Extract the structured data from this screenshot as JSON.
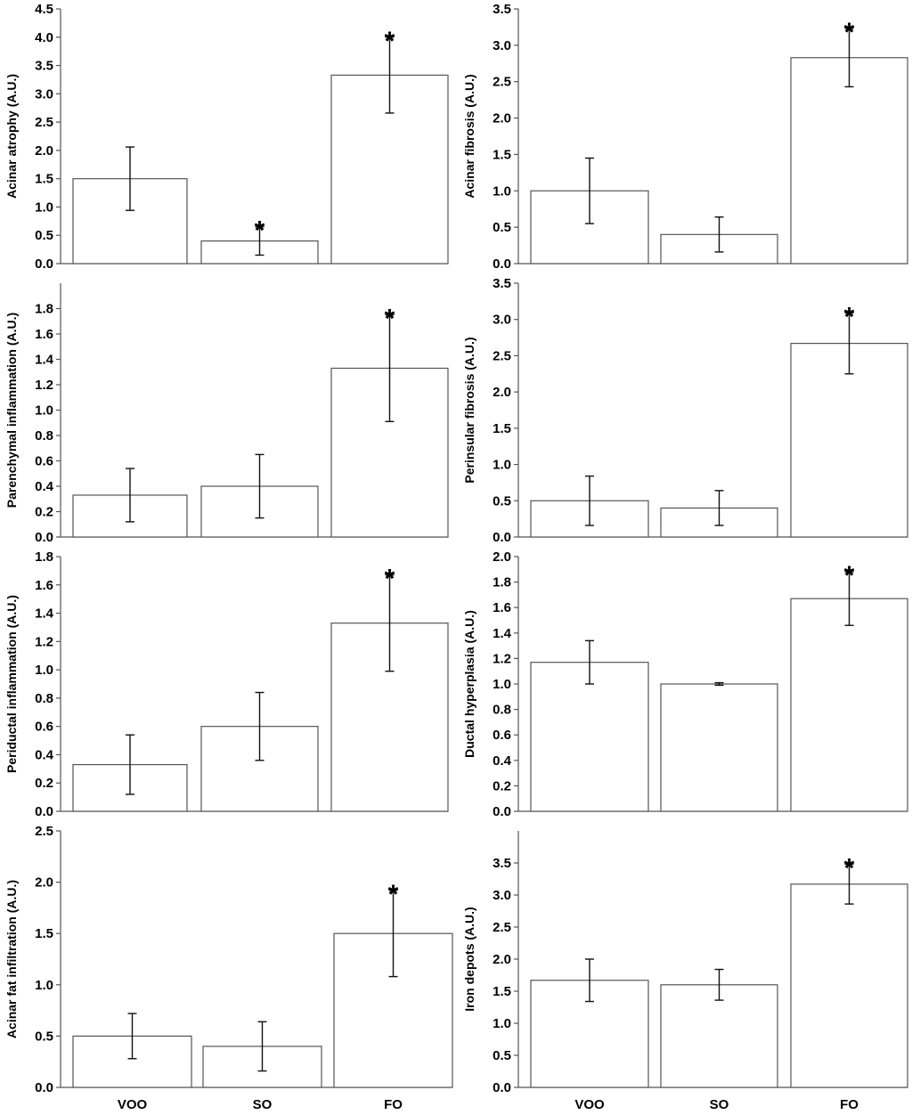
{
  "chart_data": [
    {
      "type": "bar",
      "ylabel": "Acinar atrophy (A.U.)",
      "categories": [
        "VOO",
        "SO",
        "FO"
      ],
      "values": [
        1.5,
        0.4,
        3.33
      ],
      "errors": [
        0.56,
        0.25,
        0.67
      ],
      "significant": [
        false,
        true,
        true
      ],
      "ylim": [
        0,
        4.5
      ],
      "yticks": [
        0.0,
        0.5,
        1.0,
        1.5,
        2.0,
        2.5,
        3.0,
        3.5,
        4.0,
        4.5
      ],
      "show_category_labels": false
    },
    {
      "type": "bar",
      "ylabel": "Acinar fibrosis (A.U.)",
      "categories": [
        "VOO",
        "SO",
        "FO"
      ],
      "values": [
        1.0,
        0.4,
        2.83
      ],
      "errors": [
        0.45,
        0.24,
        0.4
      ],
      "significant": [
        false,
        false,
        true
      ],
      "ylim": [
        0,
        3.5
      ],
      "yticks": [
        0.0,
        0.5,
        1.0,
        1.5,
        2.0,
        2.5,
        3.0,
        3.5
      ],
      "show_category_labels": false
    },
    {
      "type": "bar",
      "ylabel": "Parenchymal inflammation (A.U.)",
      "categories": [
        "VOO",
        "SO",
        "FO"
      ],
      "values": [
        0.33,
        0.4,
        1.33
      ],
      "errors": [
        0.21,
        0.25,
        0.42
      ],
      "significant": [
        false,
        false,
        true
      ],
      "ylim": [
        0,
        2.0
      ],
      "yticks": [
        0.0,
        0.2,
        0.4,
        0.6,
        0.8,
        1.0,
        1.2,
        1.4,
        1.6,
        1.8
      ],
      "show_category_labels": false
    },
    {
      "type": "bar",
      "ylabel": "Perinsular fibrosis (A.U.)",
      "categories": [
        "VOO",
        "SO",
        "FO"
      ],
      "values": [
        0.5,
        0.4,
        2.67
      ],
      "errors": [
        0.34,
        0.24,
        0.42
      ],
      "significant": [
        false,
        false,
        true
      ],
      "ylim": [
        0,
        3.5
      ],
      "yticks": [
        0.0,
        0.5,
        1.0,
        1.5,
        2.0,
        2.5,
        3.0,
        3.5
      ],
      "show_category_labels": false
    },
    {
      "type": "bar",
      "ylabel": "Periductal inflammation (A.U.)",
      "categories": [
        "VOO",
        "SO",
        "FO"
      ],
      "values": [
        0.33,
        0.6,
        1.33
      ],
      "errors": [
        0.21,
        0.24,
        0.34
      ],
      "significant": [
        false,
        false,
        true
      ],
      "ylim": [
        0,
        1.8
      ],
      "yticks": [
        0.0,
        0.2,
        0.4,
        0.6,
        0.8,
        1.0,
        1.2,
        1.4,
        1.6,
        1.8
      ],
      "show_category_labels": false
    },
    {
      "type": "bar",
      "ylabel": "Ductal hyperplasia (A.U.)",
      "categories": [
        "VOO",
        "SO",
        "FO"
      ],
      "values": [
        1.17,
        1.0,
        1.67
      ],
      "errors": [
        0.17,
        0.01,
        0.21
      ],
      "significant": [
        false,
        false,
        true
      ],
      "ylim": [
        0,
        2.0
      ],
      "yticks": [
        0.0,
        0.2,
        0.4,
        0.6,
        0.8,
        1.0,
        1.2,
        1.4,
        1.6,
        1.8,
        2.0
      ],
      "show_category_labels": false
    },
    {
      "type": "bar",
      "ylabel": "Acinar fat infiltration (A.U.)",
      "categories": [
        "VOO",
        "SO",
        "FO"
      ],
      "values": [
        0.5,
        0.4,
        1.5
      ],
      "errors": [
        0.22,
        0.24,
        0.42
      ],
      "significant": [
        false,
        false,
        true
      ],
      "ylim": [
        0,
        2.5
      ],
      "yticks": [
        0.0,
        0.5,
        1.0,
        1.5,
        2.0,
        2.5
      ],
      "show_category_labels": true
    },
    {
      "type": "bar",
      "ylabel": "Iron depots (A.U.)",
      "categories": [
        "VOO",
        "SO",
        "FO"
      ],
      "values": [
        1.67,
        1.6,
        3.17
      ],
      "errors": [
        0.33,
        0.24,
        0.31
      ],
      "significant": [
        false,
        false,
        true
      ],
      "ylim": [
        0,
        4.0
      ],
      "yticks": [
        0.0,
        0.5,
        1.0,
        1.5,
        2.0,
        2.5,
        3.0,
        3.5
      ],
      "show_category_labels": true
    }
  ],
  "significance_marker": "*"
}
